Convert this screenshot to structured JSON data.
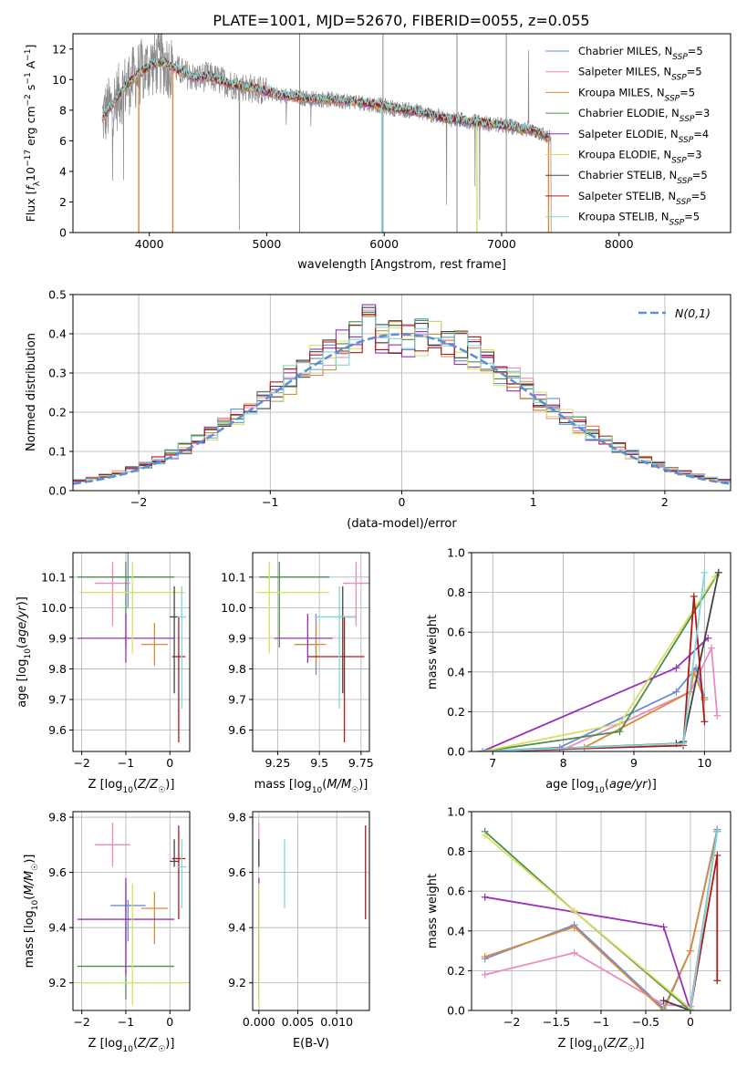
{
  "figure": {
    "title": "PLATE=1001, MJD=52670, FIBERID=0055, z=0.055"
  },
  "colors": {
    "Chabrier MILES": "#6a8fd8",
    "Salpeter MILES": "#e88cc0",
    "Kroupa MILES": "#d98a3a",
    "Chabrier ELODIE": "#4f8a4f",
    "Salpeter ELODIE": "#9b30b8",
    "Kroupa ELODIE": "#d8e060",
    "Chabrier STELIB": "#444444",
    "Salpeter STELIB": "#b01818",
    "Kroupa STELIB": "#80d8d8",
    "data": "#888888",
    "normal": "#5b8fd8",
    "grid": "#b0b0b0"
  },
  "chart_data": [
    {
      "id": "spectrum",
      "type": "line",
      "xlabel": "wavelength [Angstrom, rest frame]",
      "ylabel": "Flux [f_λ10^{-17} erg cm^{-2} s^{-1} A^{-1}]",
      "xlim": [
        3350,
        8950
      ],
      "ylim": [
        0,
        13
      ],
      "xticks": [
        4000,
        5000,
        6000,
        7000,
        8000
      ],
      "yticks": [
        0,
        2,
        4,
        6,
        8,
        10,
        12
      ],
      "grid": false,
      "legend_position": "top-right",
      "legend": [
        "Chabrier MILES, N_SSP=5",
        "Salpeter MILES, N_SSP=5",
        "Kroupa MILES, N_SSP=5",
        "Chabrier ELODIE, N_SSP=3",
        "Salpeter ELODIE, N_SSP=4",
        "Kroupa ELODIE, N_SSP=3",
        "Chabrier STELIB, N_SSP=5",
        "Salpeter STELIB, N_SSP=5",
        "Kroupa STELIB, N_SSP=5"
      ],
      "legend_labels": {
        "Chabrier MILES": [
          "Chabrier MILES, N",
          "SSP",
          "=5"
        ],
        "Salpeter MILES": [
          "Salpeter MILES, N",
          "SSP",
          "=5"
        ],
        "Kroupa MILES": [
          "Kroupa MILES, N",
          "SSP",
          "=5"
        ],
        "Chabrier ELODIE": [
          "Chabrier ELODIE, N",
          "SSP",
          "=3"
        ],
        "Salpeter ELODIE": [
          "Salpeter ELODIE, N",
          "SSP",
          "=4"
        ],
        "Kroupa ELODIE": [
          "Kroupa ELODIE, N",
          "SSP",
          "=3"
        ],
        "Chabrier STELIB": [
          "Chabrier STELIB, N",
          "SSP",
          "=5"
        ],
        "Salpeter STELIB": [
          "Salpeter STELIB, N",
          "SSP",
          "=5"
        ],
        "Kroupa STELIB": [
          "Kroupa STELIB, N",
          "SSP",
          "=5"
        ]
      },
      "continuum": {
        "x": [
          3600,
          3700,
          3800,
          3900,
          4000,
          4100,
          4200,
          4300,
          4400,
          4500,
          4700,
          4900,
          5100,
          5300,
          5500,
          5700,
          5900,
          6100,
          6300,
          6500,
          6700,
          6900,
          7100,
          7300,
          7400
        ],
        "y": [
          7.5,
          8.5,
          9.6,
          10.3,
          10.9,
          11.2,
          10.8,
          10.4,
          10.1,
          10.2,
          9.7,
          9.4,
          9.0,
          8.8,
          8.7,
          8.6,
          8.4,
          8.1,
          7.9,
          7.5,
          7.3,
          7.1,
          6.9,
          6.6,
          6.2
        ]
      },
      "model_drops": [
        {
          "model": "Kroupa MILES",
          "x": 4200
        },
        {
          "model": "Kroupa MILES",
          "x": 3910
        },
        {
          "model": "Kroupa MILES",
          "x": 7400
        },
        {
          "model": "Kroupa STELIB",
          "x": 5980
        },
        {
          "model": "Kroupa ELODIE",
          "x": 6790
        }
      ]
    },
    {
      "id": "residuals",
      "type": "line",
      "xlabel": "(data-model)/error",
      "ylabel": "Normed distribution",
      "xlim": [
        -2.5,
        2.5
      ],
      "ylim": [
        0,
        0.5
      ],
      "xticks": [
        -2,
        -1,
        0,
        1,
        2
      ],
      "yticks": [
        0.0,
        0.1,
        0.2,
        0.3,
        0.4,
        0.5
      ],
      "grid": true,
      "legend_position": "top-right",
      "normal_label": "N(0,1)",
      "normal_mean": 0,
      "normal_sigma": 1,
      "bin_width": 0.1
    },
    {
      "id": "age-vs-Z",
      "type": "scatter",
      "xlabel": "Z [log10(Z/Z☉)]",
      "ylabel": "age [log10(age/yr)]",
      "xlim": [
        -2.2,
        0.45
      ],
      "ylim": [
        9.53,
        10.18
      ],
      "xticks": [
        -2,
        -1,
        0
      ],
      "yticks": [
        9.6,
        9.7,
        9.8,
        9.9,
        10.0,
        10.1
      ],
      "grid": true
    },
    {
      "id": "age-vs-mass",
      "type": "scatter",
      "xlabel": "mass [log10(M/M☉)]",
      "ylabel": "",
      "xlim": [
        9.1,
        9.8
      ],
      "ylim": [
        9.53,
        10.18
      ],
      "xticks": [
        9.25,
        9.5,
        9.75
      ],
      "yticks": [
        9.6,
        9.7,
        9.8,
        9.9,
        10.0,
        10.1
      ],
      "grid": true
    },
    {
      "id": "weight-vs-age",
      "type": "line",
      "xlabel": "age [log10(age/yr)]",
      "ylabel": "mass weight",
      "xlim": [
        6.7,
        10.37
      ],
      "ylim": [
        0,
        1
      ],
      "xticks": [
        7,
        8,
        9,
        10
      ],
      "yticks": [
        0.0,
        0.2,
        0.4,
        0.6,
        0.8,
        1.0
      ],
      "grid": true
    },
    {
      "id": "mass-vs-Z",
      "type": "scatter",
      "xlabel": "Z [log10(Z/Z☉)]",
      "ylabel": "mass [log10(M/M☉)]",
      "xlim": [
        -2.2,
        0.45
      ],
      "ylim": [
        9.1,
        9.82
      ],
      "xticks": [
        -2,
        -1,
        0
      ],
      "yticks": [
        9.2,
        9.4,
        9.6,
        9.8
      ],
      "grid": true
    },
    {
      "id": "mass-vs-EBV",
      "type": "scatter",
      "xlabel": "E(B-V)",
      "ylabel": "",
      "xlim": [
        -0.0008,
        0.0142
      ],
      "ylim": [
        9.1,
        9.82
      ],
      "xticks": [
        0.0,
        0.005,
        0.01
      ],
      "xticklabels": [
        "0.000",
        "0.005",
        "0.010"
      ],
      "yticks": [
        9.2,
        9.4,
        9.6,
        9.8
      ],
      "grid": true
    },
    {
      "id": "weight-vs-Z",
      "type": "line",
      "xlabel": "Z [log10(Z/Z☉)]",
      "ylabel": "mass weight",
      "xlim": [
        -2.45,
        0.45
      ],
      "ylim": [
        0,
        1
      ],
      "xticks": [
        -2.0,
        -1.5,
        -1.0,
        -0.5,
        0.0
      ],
      "yticks": [
        0.0,
        0.2,
        0.4,
        0.6,
        0.8,
        1.0
      ],
      "grid": true
    }
  ],
  "models": [
    {
      "name": "Chabrier MILES",
      "age": 10.1,
      "age_err": [
        0.1,
        0.1
      ],
      "Z": -0.95,
      "Z_err": [
        0.4,
        0.4
      ],
      "mass": 9.48,
      "mass_err": [
        0.13,
        0.02
      ],
      "ebv": 0.0,
      "ebv_err": [
        0.0,
        0.0
      ],
      "mass_age": [
        9.48,
        9.88
      ],
      "age_weights": [
        [
          6.85,
          0.0
        ],
        [
          7.95,
          0.02
        ],
        [
          9.6,
          0.3
        ],
        [
          9.88,
          0.42
        ],
        [
          10.0,
          0.27
        ]
      ],
      "z_weights": [
        [
          -2.3,
          0.26
        ],
        [
          -1.3,
          0.43
        ],
        [
          -0.3,
          0.01
        ],
        [
          0.0,
          0.3
        ],
        [
          0.3,
          0.91
        ]
      ]
    },
    {
      "name": "Salpeter MILES",
      "age": 10.08,
      "age_err": [
        0.14,
        0.07
      ],
      "Z": -1.3,
      "Z_err": [
        0.4,
        0.4
      ],
      "mass": 9.7,
      "mass_err": [
        0.08,
        0.08
      ],
      "ebv": 0.0,
      "ebv_err": [
        0.0,
        0.0
      ],
      "mass_age": [
        9.72,
        10.08
      ],
      "age_weights": [
        [
          6.85,
          0.0
        ],
        [
          8.0,
          0.01
        ],
        [
          9.8,
          0.3
        ],
        [
          10.1,
          0.52
        ],
        [
          10.18,
          0.18
        ]
      ],
      "z_weights": [
        [
          -2.3,
          0.18
        ],
        [
          -1.3,
          0.29
        ],
        [
          -0.3,
          0.03
        ],
        [
          0.0,
          0.02
        ],
        [
          0.3,
          0.9
        ]
      ]
    },
    {
      "name": "Kroupa MILES",
      "age": 9.88,
      "age_err": [
        0.07,
        0.07
      ],
      "Z": -0.35,
      "Z_err": [
        0.3,
        0.3
      ],
      "mass": 9.47,
      "mass_err": [
        0.13,
        0.06
      ],
      "ebv": 0.0,
      "ebv_err": [
        0.05,
        0.05
      ],
      "mass_age": [
        9.48,
        9.88
      ],
      "age_weights": [
        [
          6.85,
          0.0
        ],
        [
          8.3,
          0.02
        ],
        [
          9.8,
          0.3
        ],
        [
          9.85,
          0.4
        ],
        [
          10.0,
          0.26
        ]
      ],
      "z_weights": [
        [
          -2.3,
          0.27
        ],
        [
          -1.3,
          0.42
        ],
        [
          -0.3,
          0.0
        ],
        [
          0.0,
          0.3
        ],
        [
          0.3,
          0.9
        ]
      ]
    },
    {
      "name": "Chabrier ELODIE",
      "age": 10.1,
      "age_err": [
        0.23,
        0.05
      ],
      "Z": -1.0,
      "Z_err": [
        1.1,
        1.1
      ],
      "mass": 9.26,
      "mass_err": [
        0.12,
        0.3
      ],
      "ebv": 0.0,
      "ebv_err": [
        0.0,
        0.0
      ],
      "mass_age": [
        9.26,
        10.1
      ],
      "age_weights": [
        [
          6.85,
          0.0
        ],
        [
          8.8,
          0.1
        ],
        [
          10.2,
          0.9
        ]
      ],
      "z_weights": [
        [
          -2.3,
          0.9
        ],
        [
          -1.3,
          0.5
        ],
        [
          0.0,
          0.0
        ]
      ]
    },
    {
      "name": "Salpeter ELODIE",
      "age": 9.9,
      "age_err": [
        0.08,
        0.08
      ],
      "Z": -1.0,
      "Z_err": [
        1.1,
        1.1
      ],
      "mass": 9.43,
      "mass_err": [
        0.2,
        0.15
      ],
      "ebv": 0.0,
      "ebv_err": [
        0.0,
        0.0
      ],
      "mass_age": [
        9.43,
        9.9
      ],
      "age_weights": [
        [
          6.85,
          0.0
        ],
        [
          9.6,
          0.42
        ],
        [
          10.05,
          0.57
        ]
      ],
      "z_weights": [
        [
          -2.3,
          0.57
        ],
        [
          -0.3,
          0.42
        ],
        [
          0.0,
          0.0
        ]
      ]
    },
    {
      "name": "Kroupa ELODIE",
      "age": 10.05,
      "age_err": [
        0.2,
        0.1
      ],
      "Z": -0.85,
      "Z_err": [
        1.2,
        1.2
      ],
      "mass": 9.2,
      "mass_err": [
        0.08,
        0.36
      ],
      "ebv": 0.0,
      "ebv_err": [
        0.0,
        0.0
      ],
      "mass_age": [
        9.2,
        10.05
      ],
      "age_weights": [
        [
          6.85,
          0.0
        ],
        [
          8.8,
          0.14
        ],
        [
          10.15,
          0.88
        ]
      ],
      "z_weights": [
        [
          -2.3,
          0.88
        ],
        [
          -1.3,
          0.5
        ],
        [
          0.0,
          0.01
        ]
      ]
    },
    {
      "name": "Chabrier STELIB",
      "age": 9.97,
      "age_err": [
        0.25,
        0.1
      ],
      "Z": 0.1,
      "Z_err": [
        0.1,
        0.1
      ],
      "mass": 9.64,
      "mass_err": [
        0.02,
        0.08
      ],
      "ebv": 0.0,
      "ebv_err": [
        0.0,
        0.0
      ],
      "mass_age": [
        9.64,
        9.97
      ],
      "age_weights": [
        [
          6.85,
          0.0
        ],
        [
          9.6,
          0.04
        ],
        [
          9.7,
          0.05
        ],
        [
          10.2,
          0.9
        ]
      ],
      "z_weights": [
        [
          -0.3,
          0.05
        ],
        [
          0.0,
          0.0
        ],
        [
          0.3,
          0.9
        ]
      ]
    },
    {
      "name": "Salpeter STELIB",
      "age": 9.84,
      "age_err": [
        0.28,
        0.13
      ],
      "Z": 0.2,
      "Z_err": [
        0.15,
        0.15
      ],
      "mass": 9.65,
      "mass_err": [
        0.22,
        0.12
      ],
      "ebv": 0.0137,
      "ebv_err": [
        0.0,
        0.0
      ],
      "mass_age": [
        9.65,
        9.84
      ],
      "age_weights": [
        [
          6.85,
          0.0
        ],
        [
          9.7,
          0.03
        ],
        [
          9.85,
          0.78
        ],
        [
          10.0,
          0.15
        ]
      ],
      "z_weights": [
        [
          -0.3,
          0.0
        ],
        [
          0.0,
          0.0
        ],
        [
          0.3,
          0.78
        ],
        [
          0.3,
          0.15
        ]
      ]
    },
    {
      "name": "Kroupa STELIB",
      "age": 9.97,
      "age_err": [
        0.3,
        0.1
      ],
      "Z": 0.27,
      "Z_err": [
        0.1,
        0.1
      ],
      "mass": 9.62,
      "mass_err": [
        0.15,
        0.1
      ],
      "ebv": 0.0033,
      "ebv_err": [
        0.0,
        0.0
      ],
      "mass_age": [
        9.62,
        9.97
      ],
      "age_weights": [
        [
          6.85,
          0.0
        ],
        [
          9.7,
          0.04
        ],
        [
          10.0,
          0.9
        ]
      ],
      "z_weights": [
        [
          -0.3,
          0.0
        ],
        [
          0.0,
          0.0
        ],
        [
          0.3,
          0.9
        ]
      ]
    }
  ]
}
